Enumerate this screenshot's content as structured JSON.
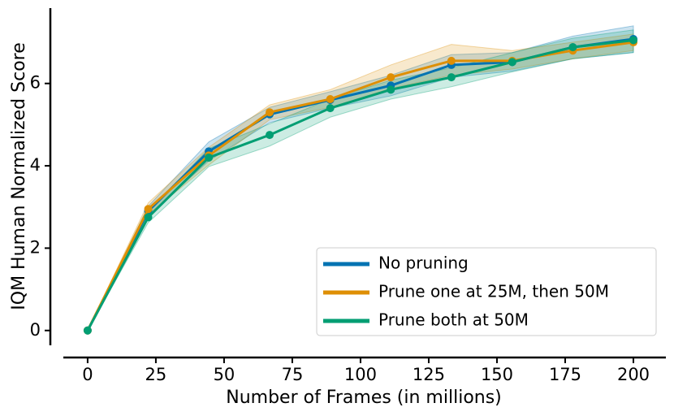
{
  "chart_data": {
    "type": "line",
    "xlabel": "Number of Frames (in millions)",
    "ylabel": "IQM Human Normalized Score",
    "x": [
      0,
      22.2,
      44.4,
      66.7,
      88.9,
      111.1,
      133.3,
      155.6,
      177.8,
      200
    ],
    "xlim": [
      -8.9,
      211.9
    ],
    "xticks": [
      0,
      25,
      50,
      75,
      100,
      125,
      150,
      175,
      200
    ],
    "ylim": [
      -0.36,
      7.83
    ],
    "yticks": [
      0,
      2,
      4,
      6
    ],
    "legend": "lower right",
    "series": [
      {
        "name": "No pruning",
        "color": "#0173b2",
        "values": [
          0,
          2.9,
          4.35,
          5.25,
          5.6,
          5.95,
          6.45,
          6.52,
          6.88,
          7.08
        ],
        "lower": [
          0,
          2.78,
          4.12,
          5.05,
          5.4,
          5.7,
          6.15,
          6.3,
          6.6,
          6.75
        ],
        "upper": [
          0,
          3.02,
          4.58,
          5.42,
          5.8,
          6.2,
          6.7,
          6.75,
          7.15,
          7.4
        ]
      },
      {
        "name": "Prune one at 25M, then 50M",
        "color": "#de8f05",
        "values": [
          0,
          2.95,
          4.25,
          5.3,
          5.62,
          6.15,
          6.55,
          6.55,
          6.8,
          7.0
        ],
        "lower": [
          0,
          2.82,
          4.02,
          5.12,
          5.42,
          5.88,
          6.2,
          6.35,
          6.6,
          6.8
        ],
        "upper": [
          0,
          3.1,
          4.45,
          5.48,
          5.85,
          6.45,
          6.95,
          6.8,
          7.0,
          7.2
        ]
      },
      {
        "name": "Prune both at 50M",
        "color": "#029e73",
        "values": [
          0,
          2.75,
          4.2,
          4.75,
          5.4,
          5.85,
          6.15,
          6.52,
          6.88,
          7.05
        ],
        "lower": [
          0,
          2.62,
          3.98,
          4.48,
          5.18,
          5.62,
          5.92,
          6.28,
          6.6,
          6.75
        ],
        "upper": [
          0,
          2.88,
          4.42,
          5.02,
          5.62,
          6.08,
          6.38,
          6.75,
          7.1,
          7.3
        ]
      }
    ]
  }
}
